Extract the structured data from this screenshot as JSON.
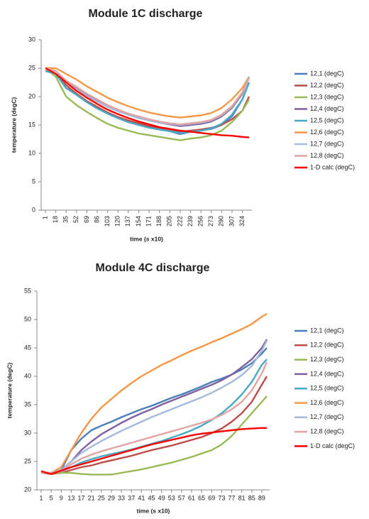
{
  "chart_data": [
    {
      "type": "line",
      "title": "Module 1C discharge",
      "xlabel": "time (s x10)",
      "ylabel": "temperature (degC)",
      "x": [
        1,
        18,
        35,
        52,
        69,
        86,
        103,
        120,
        137,
        154,
        171,
        188,
        205,
        222,
        239,
        256,
        273,
        290,
        307,
        324,
        335
      ],
      "xlim": [
        1,
        335
      ],
      "xticks": [
        1,
        18,
        35,
        52,
        69,
        86,
        103,
        120,
        137,
        154,
        171,
        188,
        205,
        222,
        239,
        256,
        273,
        290,
        307,
        324
      ],
      "ylim": [
        0,
        30
      ],
      "yticks": [
        0,
        5,
        10,
        15,
        20,
        25,
        30
      ],
      "grid": false,
      "legend": "right",
      "series": [
        {
          "name": "12,1 (degC)",
          "color": "#4a7ebb",
          "values": [
            24.5,
            24,
            21.5,
            20.5,
            19,
            18,
            17,
            16.2,
            15.5,
            15,
            14.6,
            14.2,
            13.9,
            13.4,
            13.8,
            14,
            14.3,
            15,
            16.5,
            19.5,
            22.5
          ]
        },
        {
          "name": "12,2 (degC)",
          "color": "#be4b48",
          "values": [
            25,
            24,
            22,
            20.5,
            19.2,
            18.2,
            17.2,
            16.4,
            15.8,
            15.3,
            14.8,
            14.5,
            14.2,
            13.8,
            14,
            14.2,
            14.5,
            15,
            16,
            17.5,
            20
          ]
        },
        {
          "name": "12,3 (degC)",
          "color": "#98b954",
          "values": [
            25,
            23.5,
            20,
            18.5,
            17.3,
            16.2,
            15.2,
            14.5,
            14,
            13.5,
            13.2,
            12.9,
            12.6,
            12.3,
            12.6,
            12.8,
            13.2,
            14,
            15.5,
            17.5,
            19.5
          ]
        },
        {
          "name": "12,4 (degC)",
          "color": "#7d60a0",
          "values": [
            25,
            24.5,
            22.5,
            21.5,
            20.3,
            19.3,
            18.3,
            17.5,
            16.8,
            16.3,
            15.8,
            15.4,
            15.1,
            14.8,
            15,
            15.2,
            15.6,
            16.5,
            18,
            20.5,
            23.5
          ]
        },
        {
          "name": "12,5 (degC)",
          "color": "#46aac5",
          "values": [
            24.5,
            24,
            21.5,
            20.3,
            19,
            17.9,
            17,
            16.2,
            15.5,
            15,
            14.5,
            14.2,
            13.9,
            13.6,
            13.8,
            14,
            14.4,
            15.2,
            16.8,
            19.5,
            22.5
          ]
        },
        {
          "name": "12,6 (degC)",
          "color": "#f79646",
          "values": [
            25,
            25,
            24,
            23,
            21.8,
            20.8,
            19.8,
            19,
            18.3,
            17.7,
            17.2,
            16.8,
            16.5,
            16.3,
            16.5,
            16.7,
            17.1,
            18,
            19.5,
            21.5,
            23.5
          ]
        },
        {
          "name": "12,7 (degC)",
          "color": "#a5b9dd",
          "values": [
            25,
            24.5,
            22.5,
            21.3,
            20.1,
            19.1,
            18.2,
            17.4,
            16.8,
            16.2,
            15.8,
            15.4,
            15.2,
            15,
            15.2,
            15.4,
            15.8,
            16.7,
            18.2,
            20.7,
            23.5
          ]
        },
        {
          "name": "12,8 (degC)",
          "color": "#e2a3a1",
          "values": [
            25,
            24.5,
            22.8,
            21.7,
            20.5,
            19.5,
            18.5,
            17.7,
            17,
            16.5,
            16,
            15.6,
            15.3,
            15.1,
            15.3,
            15.5,
            15.9,
            16.8,
            18.3,
            20.7,
            23.3
          ]
        },
        {
          "name": "1-D calc (degC)",
          "color": "#ff0000",
          "values": [
            25,
            24,
            22.5,
            21,
            19.8,
            18.7,
            17.7,
            16.9,
            16.2,
            15.6,
            15.1,
            14.6,
            14.3,
            14,
            13.8,
            13.6,
            13.4,
            13.2,
            13.1,
            12.9,
            12.8
          ]
        }
      ]
    },
    {
      "type": "line",
      "title": "Module 4C discharge",
      "xlabel": "time (s x10)",
      "ylabel": "temperature (degC)",
      "x": [
        1,
        5,
        9,
        13,
        17,
        21,
        25,
        29,
        33,
        37,
        41,
        45,
        49,
        53,
        57,
        61,
        65,
        69,
        73,
        77,
        81,
        85,
        89,
        91
      ],
      "xlim": [
        1,
        91
      ],
      "xticks": [
        1,
        5,
        9,
        13,
        17,
        21,
        25,
        29,
        33,
        37,
        41,
        45,
        49,
        53,
        57,
        61,
        65,
        69,
        73,
        77,
        81,
        85,
        89
      ],
      "ylim": [
        20,
        55
      ],
      "yticks": [
        20,
        25,
        30,
        35,
        40,
        45,
        50,
        55
      ],
      "grid": false,
      "legend": "right",
      "series": [
        {
          "name": "12,1 (degC)",
          "color": "#4a7ebb",
          "values": [
            23,
            23,
            23.5,
            27,
            29,
            30.5,
            31.3,
            32,
            32.8,
            33.5,
            34.2,
            34.8,
            35.5,
            36.2,
            36.8,
            37.5,
            38.2,
            39,
            39.6,
            40.3,
            41.2,
            42.3,
            44,
            45
          ]
        },
        {
          "name": "12,2 (degC)",
          "color": "#be4b48",
          "values": [
            23,
            22.8,
            23,
            23.5,
            24,
            24.3,
            24.8,
            25.2,
            25.6,
            26,
            26.5,
            27,
            27.4,
            27.8,
            28.3,
            28.8,
            29.3,
            30,
            30.8,
            32,
            33.5,
            35.5,
            38.5,
            40
          ]
        },
        {
          "name": "12,3 (degC)",
          "color": "#98b954",
          "values": [
            23,
            23,
            23,
            23,
            22.8,
            22.7,
            22.7,
            22.7,
            23,
            23.3,
            23.6,
            24,
            24.4,
            24.8,
            25.3,
            25.8,
            26.4,
            27,
            28,
            29.5,
            31.5,
            33.5,
            35.5,
            36.5
          ]
        },
        {
          "name": "12,4 (degC)",
          "color": "#7d60a0",
          "values": [
            23,
            23,
            23.5,
            25,
            27,
            28.5,
            29.8,
            30.8,
            31.8,
            32.7,
            33.5,
            34.2,
            35,
            35.7,
            36.4,
            37.1,
            37.8,
            38.5,
            39.3,
            40.3,
            41.6,
            43,
            45,
            46.5
          ]
        },
        {
          "name": "12,5 (degC)",
          "color": "#46aac5",
          "values": [
            23,
            23,
            23.3,
            24,
            24.8,
            25.4,
            25.9,
            26.3,
            26.7,
            27.1,
            27.6,
            28.1,
            28.6,
            29.2,
            29.8,
            30.5,
            31.3,
            32.3,
            33.5,
            35,
            36.8,
            39,
            42,
            43
          ]
        },
        {
          "name": "12,6 (degC)",
          "color": "#f79646",
          "values": [
            23,
            23,
            24,
            27,
            30,
            32.5,
            34.5,
            36,
            37.5,
            38.8,
            40,
            41,
            42,
            42.8,
            43.7,
            44.5,
            45.2,
            46,
            46.7,
            47.5,
            48.3,
            49.2,
            50.5,
            51
          ]
        },
        {
          "name": "12,7 (degC)",
          "color": "#a5b9dd",
          "values": [
            23,
            23,
            23.5,
            25,
            26.5,
            27.6,
            28.6,
            29.5,
            30.4,
            31.2,
            32,
            32.8,
            33.5,
            34.2,
            34.9,
            35.6,
            36.3,
            37.1,
            38,
            39,
            40.2,
            41.8,
            44.5,
            46.3
          ]
        },
        {
          "name": "12,8 (degC)",
          "color": "#e2a3a1",
          "values": [
            23,
            23,
            23.3,
            24.5,
            25.5,
            26.2,
            26.8,
            27.3,
            27.8,
            28.3,
            28.8,
            29.3,
            29.8,
            30.3,
            30.8,
            31.3,
            31.8,
            32.4,
            33.2,
            34.2,
            35.5,
            37.5,
            40.5,
            42.5
          ]
        },
        {
          "name": "1-D calc (degC)",
          "color": "#ff0000",
          "values": [
            23.3,
            22.8,
            23.4,
            24,
            24.5,
            25,
            25.5,
            26,
            26.5,
            27,
            27.5,
            28,
            28.4,
            28.8,
            29.2,
            29.6,
            29.9,
            30.1,
            30.3,
            30.5,
            30.7,
            30.8,
            30.9,
            30.9
          ]
        }
      ]
    }
  ]
}
